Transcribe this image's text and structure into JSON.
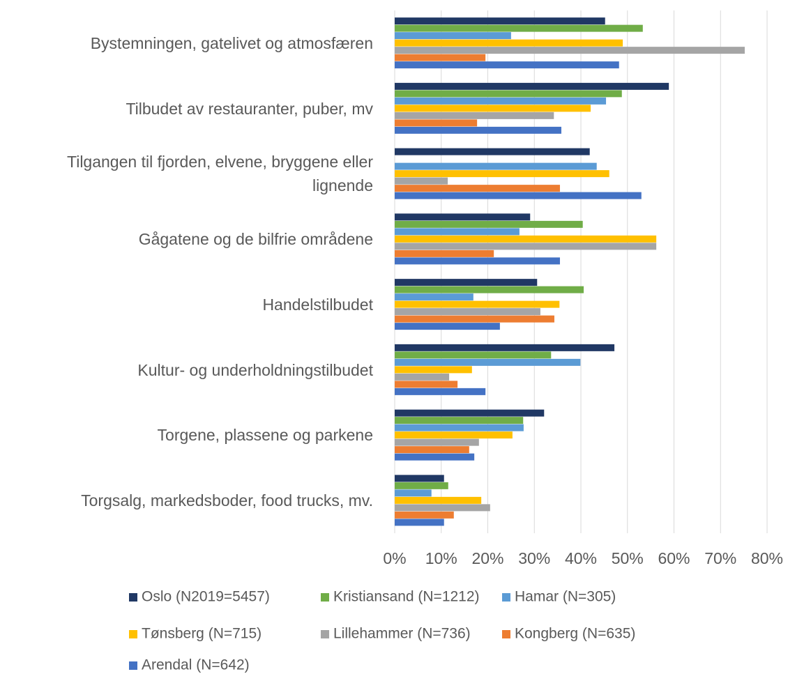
{
  "chart_data": {
    "type": "bar",
    "orientation": "horizontal",
    "categories": [
      "Bystemningen, gatelivet og atmosfæren",
      "Tilbudet av restauranter, puber, mv",
      "Tilgangen til fjorden, elvene, bryggene eller lignende",
      "Gågatene og de bilfrie områdene",
      "Handelstilbudet",
      "Kultur- og underholdningstilbudet",
      "Torgene, plassene og parkene",
      "Torgsalg, markedsboder, food trucks, mv."
    ],
    "series": [
      {
        "name": "Oslo (N2019=5457)",
        "color": "#203864",
        "values": [
          45.2,
          58.9,
          41.9,
          29.1,
          30.6,
          47.2,
          32.1,
          10.6
        ]
      },
      {
        "name": "Kristiansand (N=1212)",
        "color": "#70ad47",
        "values": [
          53.3,
          48.8,
          null,
          40.4,
          40.6,
          33.6,
          27.6,
          11.5
        ]
      },
      {
        "name": "Hamar (N=305)",
        "color": "#5b9bd5",
        "values": [
          25.0,
          45.4,
          43.4,
          26.8,
          16.9,
          39.9,
          27.7,
          7.9
        ]
      },
      {
        "name": "Tønsberg (N=715)",
        "color": "#ffc000",
        "values": [
          49.0,
          42.1,
          46.1,
          56.2,
          35.4,
          16.6,
          25.3,
          18.6
        ]
      },
      {
        "name": "Lillehammer (N=736)",
        "color": "#a5a5a5",
        "values": [
          75.2,
          34.2,
          11.4,
          56.2,
          31.3,
          11.7,
          18.1,
          20.5
        ]
      },
      {
        "name": "Kongberg (N=635)",
        "color": "#ed7d31",
        "values": [
          19.5,
          17.7,
          35.5,
          21.3,
          34.3,
          13.5,
          16.0,
          12.7
        ]
      },
      {
        "name": "Arendal (N=642)",
        "color": "#4472c4",
        "values": [
          48.2,
          35.8,
          53.0,
          35.5,
          22.6,
          19.5,
          17.1,
          10.6
        ]
      }
    ],
    "xlim": [
      0,
      80
    ],
    "xticks": [
      {
        "value": 0,
        "label": "0%"
      },
      {
        "value": 10,
        "label": "10%"
      },
      {
        "value": 20,
        "label": "20%"
      },
      {
        "value": 30,
        "label": "30%"
      },
      {
        "value": 40,
        "label": "40%"
      },
      {
        "value": 50,
        "label": "50%"
      },
      {
        "value": 60,
        "label": "60%"
      },
      {
        "value": 70,
        "label": "70%"
      },
      {
        "value": 80,
        "label": "80%"
      }
    ],
    "grid": true,
    "legend": "bottom"
  }
}
